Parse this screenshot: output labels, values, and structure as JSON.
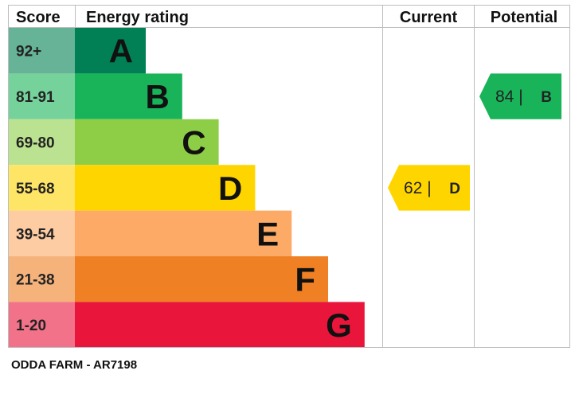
{
  "headers": {
    "score": "Score",
    "rating": "Energy rating",
    "current": "Current",
    "potential": "Potential"
  },
  "chart_data": {
    "type": "bar",
    "bands": [
      {
        "letter": "A",
        "range": "92+",
        "color": "#008054",
        "score_color": "#66b398"
      },
      {
        "letter": "B",
        "range": "81-91",
        "color": "#19b459",
        "score_color": "#75d29b"
      },
      {
        "letter": "C",
        "range": "69-80",
        "color": "#8dce46",
        "score_color": "#bbe290"
      },
      {
        "letter": "D",
        "range": "55-68",
        "color": "#ffd500",
        "score_color": "#ffe566"
      },
      {
        "letter": "E",
        "range": "39-54",
        "color": "#fcaa65",
        "score_color": "#fdcca3"
      },
      {
        "letter": "F",
        "range": "21-38",
        "color": "#ef8023",
        "score_color": "#f5b37b"
      },
      {
        "letter": "G",
        "range": "1-20",
        "color": "#e9153b",
        "score_color": "#f27389"
      }
    ],
    "current": {
      "value": 62,
      "letter": "D",
      "color": "#ffd500",
      "text_color": "#222222"
    },
    "potential": {
      "value": 84,
      "letter": "B",
      "color": "#19b459",
      "text_color": "#222222"
    }
  },
  "footer": "ODDA FARM - AR7198"
}
